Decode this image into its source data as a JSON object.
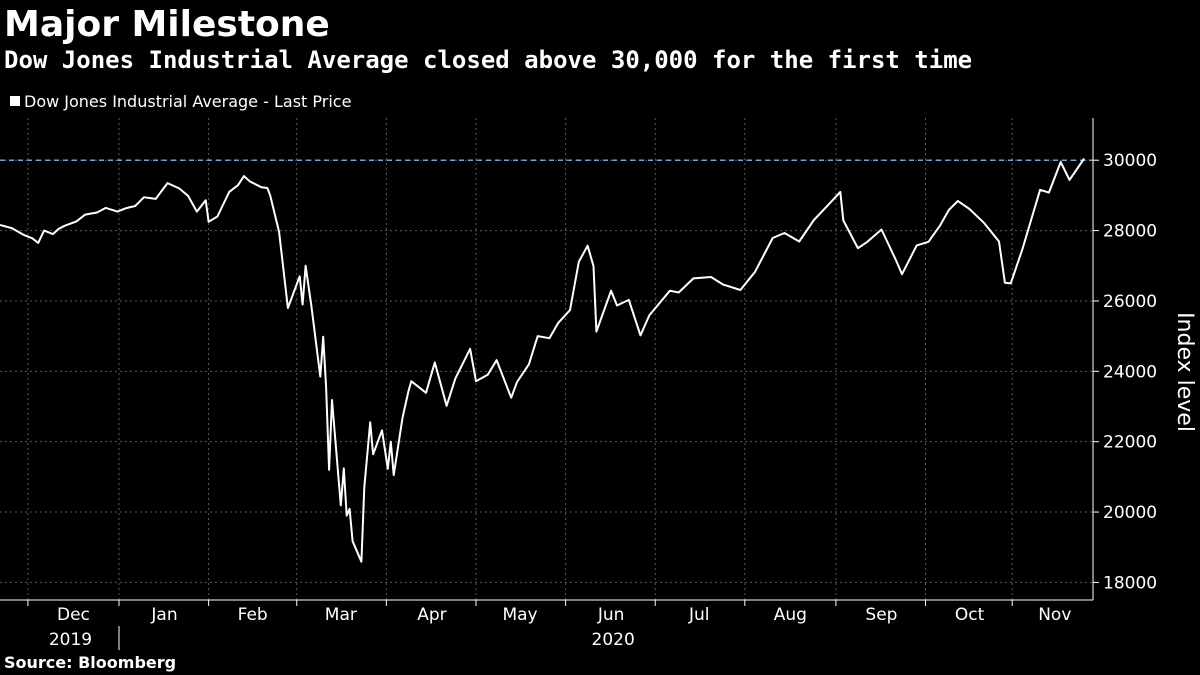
{
  "colors": {
    "background": "#000000",
    "line": "#ffffff",
    "reference": "#6fa8dc",
    "grid": "#5a5a5a"
  },
  "title": "Major Milestone",
  "subtitle": "Dow Jones Industrial Average closed above 30,000 for the first time",
  "source": "Source: Bloomberg",
  "chart_data": {
    "type": "line",
    "legend": "top-left",
    "grid": true,
    "ylabel": "Index level",
    "ylim": [
      17500,
      31200
    ],
    "xlim": [
      "2019-11-21",
      "2020-11-27"
    ],
    "yticks": [
      18000,
      20000,
      22000,
      24000,
      26000,
      28000,
      30000
    ],
    "xticks": [
      {
        "label": "Dec",
        "date": "2019-12-16"
      },
      {
        "label": "Jan",
        "date": "2020-01-16"
      },
      {
        "label": "Feb",
        "date": "2020-02-15"
      },
      {
        "label": "Mar",
        "date": "2020-03-16"
      },
      {
        "label": "Apr",
        "date": "2020-04-16"
      },
      {
        "label": "May",
        "date": "2020-05-16"
      },
      {
        "label": "Jun",
        "date": "2020-06-16"
      },
      {
        "label": "Jul",
        "date": "2020-07-16"
      },
      {
        "label": "Aug",
        "date": "2020-08-16"
      },
      {
        "label": "Sep",
        "date": "2020-09-16"
      },
      {
        "label": "Oct",
        "date": "2020-10-16"
      },
      {
        "label": "Nov",
        "date": "2020-11-14"
      }
    ],
    "year_labels": [
      {
        "label": "2019",
        "date": "2019-12-16"
      },
      {
        "label": "2020",
        "date": "2020-06-16"
      }
    ],
    "reference_line": 30000,
    "series": [
      {
        "name": "Dow Jones Industrial Average - Last Price",
        "x": [
          "2019-11-21",
          "2019-11-25",
          "2019-11-29",
          "2019-12-02",
          "2019-12-04",
          "2019-12-06",
          "2019-12-09",
          "2019-12-11",
          "2019-12-13",
          "2019-12-17",
          "2019-12-20",
          "2019-12-24",
          "2019-12-27",
          "2019-12-31",
          "2020-01-03",
          "2020-01-06",
          "2020-01-09",
          "2020-01-13",
          "2020-01-17",
          "2020-01-21",
          "2020-01-24",
          "2020-01-27",
          "2020-01-30",
          "2020-01-31",
          "2020-02-03",
          "2020-02-07",
          "2020-02-10",
          "2020-02-12",
          "2020-02-14",
          "2020-02-18",
          "2020-02-20",
          "2020-02-21",
          "2020-02-24",
          "2020-02-27",
          "2020-03-02",
          "2020-03-03",
          "2020-03-04",
          "2020-03-06",
          "2020-03-09",
          "2020-03-10",
          "2020-03-11",
          "2020-03-12",
          "2020-03-13",
          "2020-03-16",
          "2020-03-17",
          "2020-03-18",
          "2020-03-19",
          "2020-03-20",
          "2020-03-23",
          "2020-03-24",
          "2020-03-26",
          "2020-03-27",
          "2020-03-30",
          "2020-04-01",
          "2020-04-02",
          "2020-04-03",
          "2020-04-06",
          "2020-04-08",
          "2020-04-09",
          "2020-04-14",
          "2020-04-17",
          "2020-04-21",
          "2020-04-24",
          "2020-04-29",
          "2020-05-01",
          "2020-05-05",
          "2020-05-08",
          "2020-05-13",
          "2020-05-15",
          "2020-05-19",
          "2020-05-22",
          "2020-05-26",
          "2020-05-29",
          "2020-06-02",
          "2020-06-05",
          "2020-06-08",
          "2020-06-10",
          "2020-06-11",
          "2020-06-16",
          "2020-06-18",
          "2020-06-22",
          "2020-06-26",
          "2020-06-29",
          "2020-07-06",
          "2020-07-09",
          "2020-07-14",
          "2020-07-20",
          "2020-07-24",
          "2020-07-30",
          "2020-08-04",
          "2020-08-10",
          "2020-08-14",
          "2020-08-19",
          "2020-08-24",
          "2020-08-28",
          "2020-09-02",
          "2020-09-03",
          "2020-09-08",
          "2020-09-11",
          "2020-09-16",
          "2020-09-21",
          "2020-09-23",
          "2020-09-28",
          "2020-10-02",
          "2020-10-06",
          "2020-10-09",
          "2020-10-12",
          "2020-10-16",
          "2020-10-21",
          "2020-10-26",
          "2020-10-28",
          "2020-10-30",
          "2020-11-03",
          "2020-11-06",
          "2020-11-09",
          "2020-11-12",
          "2020-11-16",
          "2020-11-19",
          "2020-11-24"
        ],
        "y": [
          28160,
          28070,
          27880,
          27780,
          27650,
          28000,
          27900,
          28050,
          28135,
          28260,
          28455,
          28515,
          28645,
          28540,
          28640,
          28700,
          28950,
          28900,
          29350,
          29200,
          28990,
          28540,
          28860,
          28250,
          28400,
          29100,
          29290,
          29550,
          29400,
          29230,
          29210,
          28990,
          27960,
          25800,
          26700,
          25900,
          27000,
          25850,
          23850,
          24980,
          23550,
          21200,
          23185,
          20190,
          21240,
          19900,
          20090,
          19170,
          18590,
          20700,
          22550,
          21640,
          22320,
          21230,
          22000,
          21050,
          22680,
          23430,
          23720,
          23390,
          24250,
          23020,
          23800,
          24640,
          23720,
          23900,
          24320,
          23250,
          23700,
          24200,
          25000,
          24940,
          25380,
          25740,
          27110,
          27570,
          26990,
          25130,
          26290,
          25870,
          26030,
          25020,
          25590,
          26290,
          26240,
          26640,
          26680,
          26470,
          26310,
          26830,
          27790,
          27930,
          27690,
          28300,
          28650,
          29100,
          28290,
          27500,
          27670,
          28030,
          27150,
          26760,
          27580,
          27680,
          28150,
          28590,
          28840,
          28610,
          28210,
          27690,
          26520,
          26500,
          27480,
          28320,
          29160,
          29080,
          29950,
          29440,
          30050
        ]
      }
    ]
  }
}
